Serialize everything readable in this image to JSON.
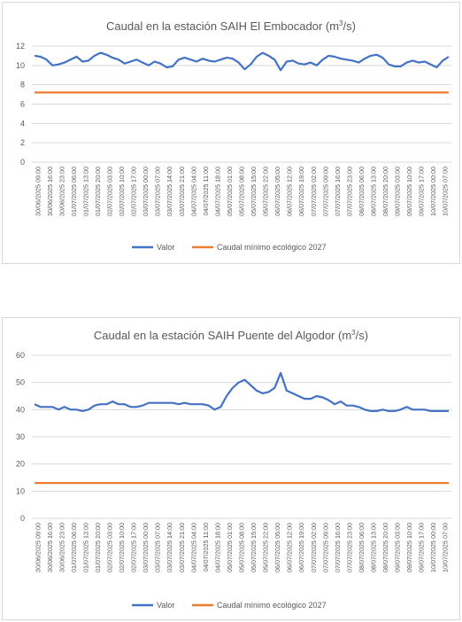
{
  "colors": {
    "valor": "#4472C4",
    "minimo": "#ED7D31",
    "grid": "#d9d9d9",
    "text": "#595959"
  },
  "x_labels": [
    "30/06/2025 09:00",
    "30/06/2025 16:00",
    "30/06/2025 23:00",
    "01/07/2025 06:00",
    "01/07/2025 13:00",
    "01/07/2025 20:00",
    "02/07/2025 03:00",
    "02/07/2025 10:00",
    "02/07/2025 17:00",
    "03/07/2025 00:00",
    "03/07/2025 07:00",
    "03/07/2025 14:00",
    "03/07/2025 21:00",
    "04/07/2025 04:00",
    "04/07/2025 11:00",
    "04/07/2025 18:00",
    "05/07/2025 01:00",
    "05/07/2025 08:00",
    "05/07/2025 15:00",
    "05/07/2025 22:00",
    "06/07/2025 05:00",
    "06/07/2025 12:00",
    "06/07/2025 19:00",
    "07/07/2025 02:00",
    "07/07/2025 09:00",
    "07/07/2025 16:00",
    "07/07/2025 23:00",
    "08/07/2025 06:00",
    "08/07/2025 13:00",
    "08/07/2025 20:00",
    "09/07/2025 03:00",
    "09/07/2025 10:00",
    "09/07/2025 17:00",
    "10/07/2025 00:00",
    "10/07/2025 07:00"
  ],
  "chart_data": [
    {
      "type": "line",
      "title_main": "Caudal en la estación SAIH El Embocador (m",
      "title_sup": "3",
      "title_end": "/s)",
      "ylim": [
        0,
        12
      ],
      "yticks": [
        "0",
        "2",
        "4",
        "6",
        "8",
        "10",
        "12"
      ],
      "legend": [
        "Valor",
        "Caudal mínimo ecológico 2027"
      ],
      "series": [
        {
          "name": "Valor",
          "values": [
            11.0,
            10.9,
            10.6,
            10.0,
            10.1,
            10.3,
            10.6,
            10.9,
            10.4,
            10.5,
            11.0,
            11.3,
            11.1,
            10.8,
            10.6,
            10.2,
            10.4,
            10.6,
            10.3,
            10.0,
            10.4,
            10.2,
            9.8,
            9.9,
            10.6,
            10.8,
            10.6,
            10.4,
            10.7,
            10.5,
            10.4,
            10.6,
            10.8,
            10.7,
            10.3,
            9.6,
            10.1,
            10.9,
            11.3,
            11.0,
            10.6,
            9.5,
            10.4,
            10.5,
            10.2,
            10.1,
            10.3,
            10.0,
            10.6,
            11.0,
            10.9,
            10.7,
            10.6,
            10.5,
            10.3,
            10.7,
            11.0,
            11.1,
            10.8,
            10.1,
            9.9,
            9.9,
            10.3,
            10.5,
            10.3,
            10.4,
            10.1,
            9.8,
            10.5,
            10.9
          ]
        },
        {
          "name": "Caudal mínimo ecológico 2027",
          "values": [
            7.2,
            7.2
          ]
        }
      ]
    },
    {
      "type": "line",
      "title_main": "Caudal en la estación SAIH Puente del Algodor (m",
      "title_sup": "3",
      "title_end": "/s)",
      "ylim": [
        0,
        60
      ],
      "yticks": [
        "0",
        "10",
        "20",
        "30",
        "40",
        "50",
        "60"
      ],
      "legend": [
        "Valor",
        "Caudal mínimo ecológico 2027"
      ],
      "series": [
        {
          "name": "Valor",
          "values": [
            42,
            41,
            41,
            41,
            40,
            41,
            40,
            40,
            39.5,
            40,
            41.5,
            42,
            42,
            43,
            42,
            42,
            41,
            41,
            41.5,
            42.5,
            42.5,
            42.5,
            42.5,
            42.5,
            42,
            42.5,
            42,
            42,
            42,
            41.5,
            40,
            41,
            45,
            48,
            50,
            51,
            49,
            47,
            46,
            46.5,
            48,
            53.5,
            47,
            46,
            45,
            44,
            44,
            45,
            44.5,
            43.5,
            42,
            43,
            41.5,
            41.5,
            41,
            40,
            39.5,
            39.5,
            40,
            39.5,
            39.5,
            40,
            41,
            40,
            40,
            40,
            39.5,
            39.5,
            39.5,
            39.5
          ]
        },
        {
          "name": "Caudal mínimo ecológico 2027",
          "values": [
            13,
            13
          ]
        }
      ]
    }
  ]
}
